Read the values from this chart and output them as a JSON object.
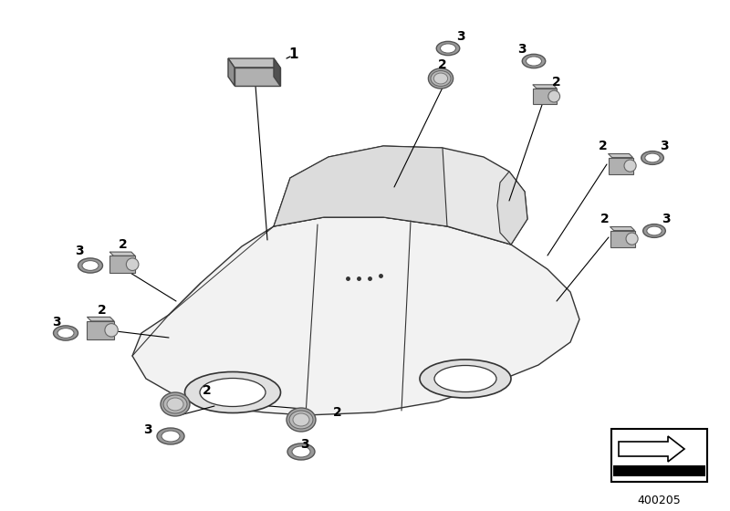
{
  "bg_color": "#ffffff",
  "line_color": "#000000",
  "car_body_fill": "#f2f2f2",
  "car_edge": "#333333",
  "roof_fill": "#e8e8e8",
  "window_fill": "#dcdcdc",
  "sensor_body_fill": "#b0b0b0",
  "sensor_face_fill": "#d0d0d0",
  "sensor_top_fill": "#c8c8c8",
  "ring_fill": "#888888",
  "ring_edge": "#555555",
  "module_top_fill": "#c0c0c0",
  "module_side_fill": "#808080",
  "module_front_fill": "#505050",
  "part_number": "400205",
  "fig_width": 8.0,
  "fig_height": 5.6,
  "dpi": 100
}
